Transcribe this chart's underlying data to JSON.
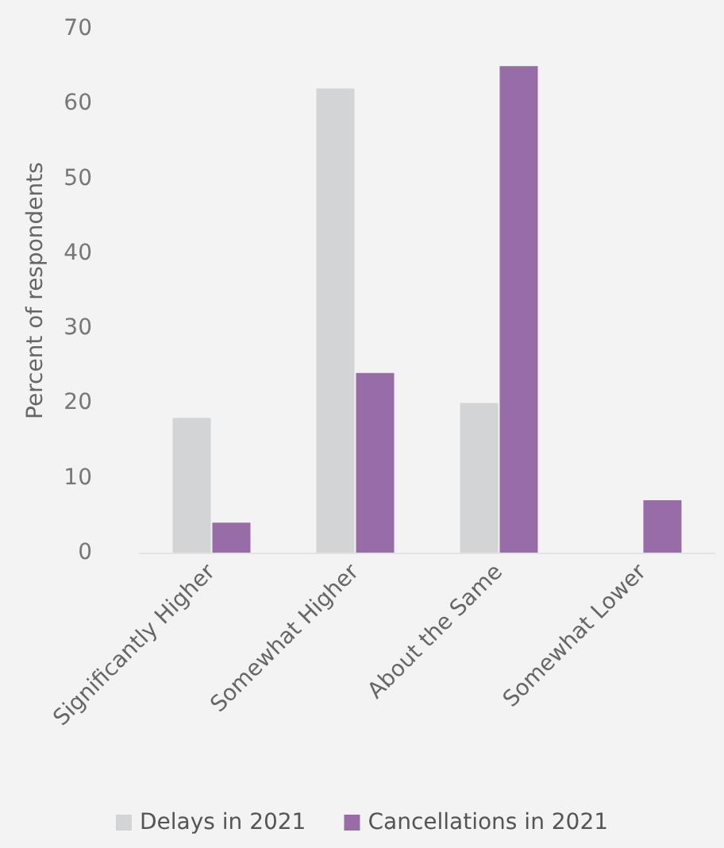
{
  "chart_data": {
    "type": "bar",
    "ylabel": "Percent of respondents",
    "categories": [
      "Significantly Higher",
      "Somewhat Higher",
      "About the Same",
      "Somewhat Lower"
    ],
    "series": [
      {
        "name": "Delays in 2021",
        "color": "#d3d4d6",
        "values": [
          18,
          62,
          20,
          0
        ]
      },
      {
        "name": "Cancellations in 2021",
        "color": "#986ca6",
        "values": [
          4,
          24,
          65,
          7
        ]
      }
    ],
    "ylim": [
      0,
      70
    ],
    "yticks": [
      0,
      10,
      20,
      30,
      40,
      50,
      60,
      70
    ],
    "grid": false,
    "legend": "bottom"
  }
}
